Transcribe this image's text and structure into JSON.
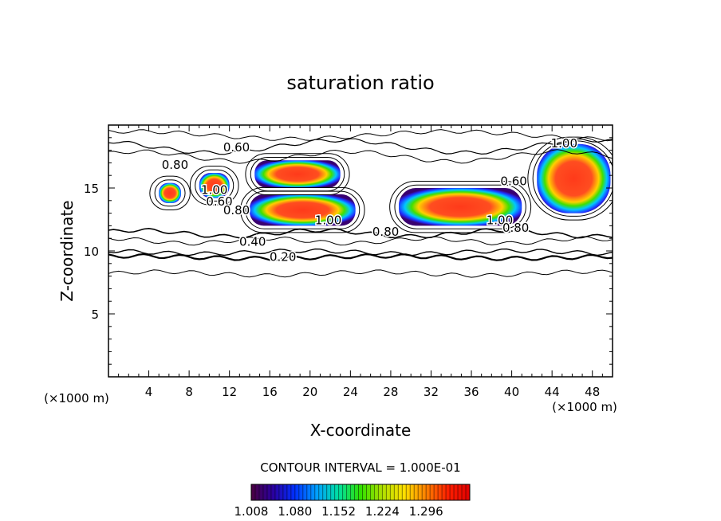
{
  "chart_data": {
    "type": "contour",
    "title": "saturation ratio",
    "xlabel": "X-coordinate",
    "ylabel": "Z-coordinate",
    "x_unit": "(×1000 m)",
    "z_unit": "(×1000 m)",
    "xlim": [
      0,
      50
    ],
    "ylim": [
      0,
      20
    ],
    "x_ticks": [
      4,
      8,
      12,
      16,
      20,
      24,
      28,
      32,
      36,
      40,
      44,
      48
    ],
    "y_ticks": [
      5,
      10,
      15
    ],
    "contour_interval_text": "CONTOUR INTERVAL = 1.000E-01",
    "contour_labels": [
      {
        "text": "0.60",
        "x": 12.7,
        "z": 18.2
      },
      {
        "text": "0.80",
        "x": 6.6,
        "z": 16.8
      },
      {
        "text": "1.00",
        "x": 10.5,
        "z": 14.8
      },
      {
        "text": "0.60",
        "x": 11.0,
        "z": 13.9
      },
      {
        "text": "0.80",
        "x": 12.7,
        "z": 13.2
      },
      {
        "text": "1.00",
        "x": 21.8,
        "z": 12.4
      },
      {
        "text": "0.80",
        "x": 27.5,
        "z": 11.5
      },
      {
        "text": "0.40",
        "x": 14.3,
        "z": 10.7
      },
      {
        "text": "0.20",
        "x": 17.3,
        "z": 9.5
      },
      {
        "text": "1.00",
        "x": 38.8,
        "z": 12.4
      },
      {
        "text": "0.80",
        "x": 40.4,
        "z": 11.8
      },
      {
        "text": "1.00",
        "x": 45.2,
        "z": 18.5
      },
      {
        "text": "0.60",
        "x": 40.2,
        "z": 15.5
      }
    ],
    "supersaturated_regions": [
      {
        "x": [
          5,
          7.2
        ],
        "z": [
          13.8,
          15.4
        ]
      },
      {
        "x": [
          9,
          12
        ],
        "z": [
          14.2,
          16.2
        ]
      },
      {
        "x": [
          14,
          24.5
        ],
        "z": [
          12,
          14.5
        ]
      },
      {
        "x": [
          14.5,
          23
        ],
        "z": [
          15,
          17.2
        ]
      },
      {
        "x": [
          28.8,
          41
        ],
        "z": [
          12,
          15
        ]
      },
      {
        "x": [
          42.5,
          49.8
        ],
        "z": [
          13,
          18.5
        ]
      }
    ],
    "colorbar": {
      "min": 1.008,
      "max": 1.368,
      "ticks": [
        "1.008",
        "1.080",
        "1.152",
        "1.224",
        "1.296"
      ]
    },
    "colors": {
      "palette": [
        "#4b0040",
        "#2a00a0",
        "#0030ff",
        "#00a0ff",
        "#00e0a0",
        "#30e000",
        "#b0e000",
        "#ffe000",
        "#ff8000",
        "#ff2000",
        "#e00000"
      ]
    }
  }
}
